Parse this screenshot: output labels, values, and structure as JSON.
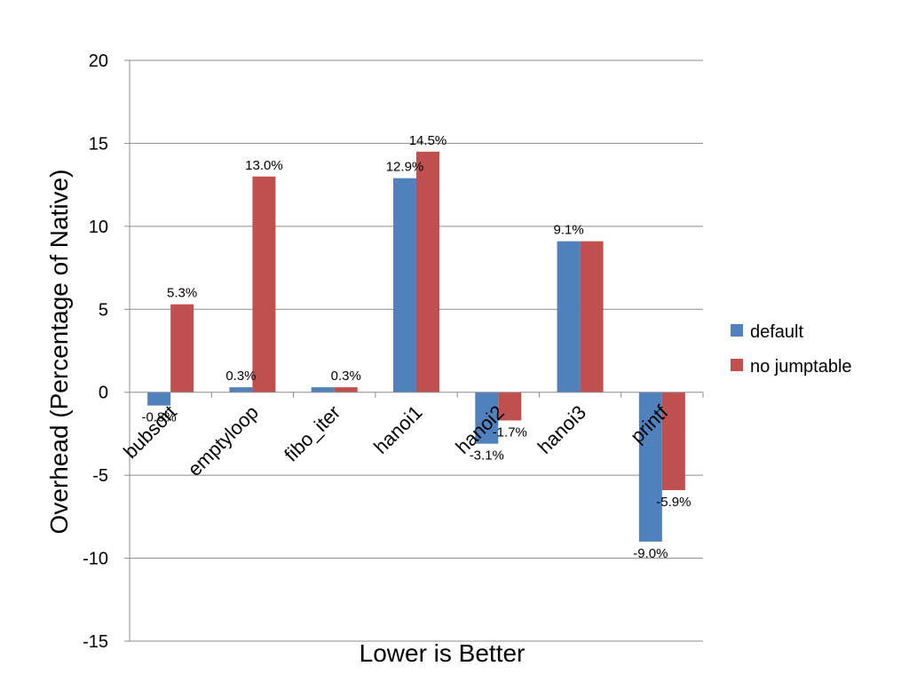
{
  "chart_data": {
    "type": "bar",
    "title": "",
    "xlabel": "Lower is Better",
    "ylabel": "Overhead (Percentage of Native)",
    "ylim": [
      -15,
      20
    ],
    "yticks": [
      20,
      15,
      10,
      5,
      0,
      -5,
      -10,
      -15
    ],
    "ytick_labels": [
      "20",
      "15",
      "10",
      "5",
      "0",
      "-5",
      "-10",
      "-15"
    ],
    "grid": true,
    "legend_position": "right",
    "categories": [
      "bubsort",
      "emptyloop",
      "fibo_iter",
      "hanoi1",
      "hanoi2",
      "hanoi3",
      "printf"
    ],
    "series": [
      {
        "name": "default",
        "color": "#4F81BD",
        "values": [
          -0.8,
          0.3,
          0.3,
          12.9,
          -3.1,
          9.1,
          -9.0
        ],
        "labels": [
          "-0.8%",
          "0.3%",
          "",
          "12.9%",
          "-3.1%",
          "9.1%",
          "-9.0%"
        ]
      },
      {
        "name": "no jumptable",
        "color": "#C0504D",
        "values": [
          5.3,
          13.0,
          0.3,
          14.5,
          -1.7,
          9.1,
          -5.9
        ],
        "labels": [
          "5.3%",
          "13.0%",
          "0.3%",
          "14.5%",
          "-1.7%",
          "",
          "-5.9%"
        ]
      }
    ]
  }
}
